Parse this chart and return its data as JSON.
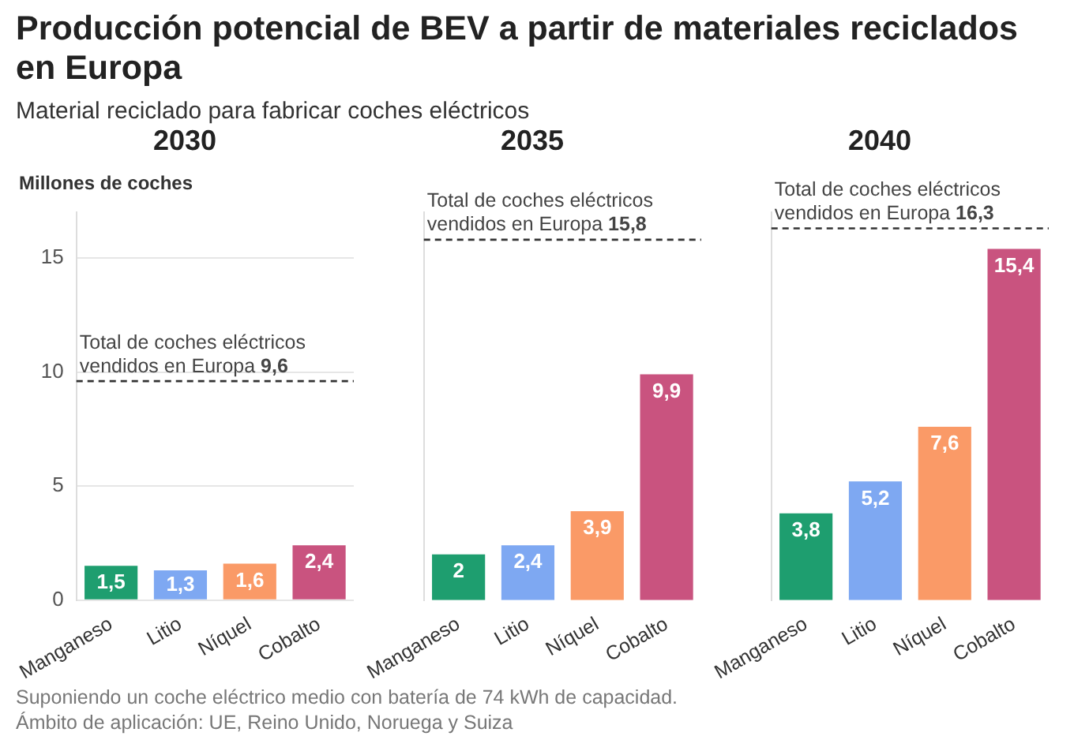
{
  "chart_data": [
    {
      "type": "bar",
      "title": "2030",
      "ylabel": "Millones de coches",
      "categories": [
        "Manganeso",
        "Litio",
        "Níquel",
        "Cobalto"
      ],
      "values": [
        1.5,
        1.3,
        1.6,
        2.4
      ],
      "value_labels": [
        "1,5",
        "1,3",
        "1,6",
        "2,4"
      ],
      "colors": [
        "#1e9e6f",
        "#7ea8f2",
        "#fa9a67",
        "#c9537f"
      ],
      "ylim": [
        0,
        17
      ],
      "yticks": [
        0,
        5,
        10,
        15
      ],
      "grid": "y",
      "ref_lines": [
        {
          "axis": "y",
          "value": 9.6,
          "label": "Total de coches eléctricos vendidos en Europa 9,6",
          "line_style": "dashed"
        }
      ]
    },
    {
      "type": "bar",
      "title": "2035",
      "categories": [
        "Manganeso",
        "Litio",
        "Níquel",
        "Cobalto"
      ],
      "values": [
        2,
        2.4,
        3.9,
        9.9
      ],
      "value_labels": [
        "2",
        "2,4",
        "3,9",
        "9,9"
      ],
      "colors": [
        "#1e9e6f",
        "#7ea8f2",
        "#fa9a67",
        "#c9537f"
      ],
      "ylim": [
        0,
        17
      ],
      "tick_labels": "x",
      "ref_lines": [
        {
          "axis": "y",
          "value": 15.8,
          "label": "Total de coches eléctricos vendidos en Europa 15,8",
          "line_style": "dashed"
        }
      ]
    },
    {
      "type": "bar",
      "title": "2040",
      "categories": [
        "Manganeso",
        "Litio",
        "Níquel",
        "Cobalto"
      ],
      "values": [
        3.8,
        5.2,
        7.6,
        15.4
      ],
      "value_labels": [
        "3,8",
        "5,2",
        "7,6",
        "15,4"
      ],
      "colors": [
        "#1e9e6f",
        "#7ea8f2",
        "#fa9a67",
        "#c9537f"
      ],
      "ylim": [
        0,
        17
      ],
      "tick_labels": "x",
      "ref_lines": [
        {
          "axis": "y",
          "value": 16.3,
          "label": "Total de coches eléctricos vendidos en Europa 16,3",
          "line_style": "dashed"
        }
      ]
    },
    {
      "type": "other",
      "title": "Producción potencial de BEV a partir de materiales reciclados en Europa",
      "subtitle": "Material reciclado para fabricar coches eléctricos",
      "annotations": [
        "Suponiendo un coche eléctrico medio con batería de 74 kWh de capacidad.",
        "Ámbito de aplicación: UE, Reino Unido, Noruega y Suiza"
      ]
    }
  ]
}
